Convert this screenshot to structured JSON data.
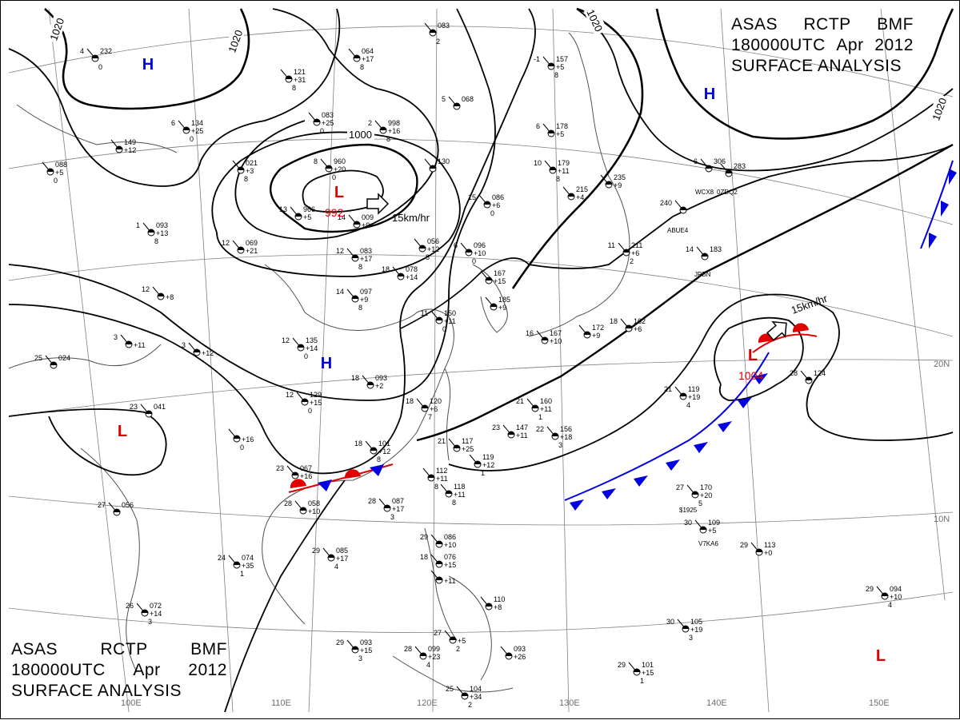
{
  "header": {
    "line1": [
      "ASAS",
      "RCTP",
      "BMF"
    ],
    "line2": [
      "180000UTC",
      "Apr",
      "2012"
    ],
    "line3": "SURFACE ANALYSIS"
  },
  "grid_labels": {
    "longitudes": [
      "100E",
      "110E",
      "120E",
      "130E",
      "140E",
      "150E"
    ],
    "latitudes": [
      "20N",
      "10N"
    ]
  },
  "isobar_labels": [
    "1020",
    "1020",
    "1020",
    "1020",
    "1000"
  ],
  "systems": [
    {
      "type": "L",
      "pressure": "992",
      "motion": "15km/hr"
    },
    {
      "type": "L",
      "pressure": "1004",
      "motion": "15km/hr"
    },
    {
      "type": "L",
      "pressure": ""
    },
    {
      "type": "L",
      "pressure": ""
    },
    {
      "type": "H",
      "pressure": ""
    },
    {
      "type": "H",
      "pressure": ""
    },
    {
      "type": "H",
      "pressure": ""
    }
  ],
  "colors": {
    "low": "#e00000",
    "high": "#0000e0",
    "isobar": "#000000",
    "grid": "#808080",
    "coast": "#505050",
    "cold_front": "#0000e0",
    "warm_front": "#e00000"
  },
  "stations": [
    {
      "t": "4",
      "p": "232",
      "d": "",
      "v": "0"
    },
    {
      "t": "6",
      "p": "134",
      "d": "+25",
      "v": "0"
    },
    {
      "t": "",
      "p": "149",
      "d": "+12",
      "v": ""
    },
    {
      "t": "",
      "p": "088",
      "d": "+5",
      "v": "0"
    },
    {
      "t": "",
      "p": "064",
      "d": "+17",
      "v": "8"
    },
    {
      "t": "",
      "p": "121",
      "d": "+31",
      "v": "8"
    },
    {
      "t": "",
      "p": "083",
      "d": "",
      "v": "2"
    },
    {
      "t": "",
      "p": "083",
      "d": "+25",
      "v": "0"
    },
    {
      "t": "",
      "p": "021",
      "d": "+3",
      "v": "8"
    },
    {
      "t": "2",
      "p": "998",
      "d": "+16",
      "v": "8"
    },
    {
      "t": "8",
      "p": "960",
      "d": "+20",
      "v": "0"
    },
    {
      "t": "13",
      "p": "966",
      "d": "+5",
      "v": ""
    },
    {
      "t": "14",
      "p": "009",
      "d": "+9",
      "v": ""
    },
    {
      "t": "1",
      "p": "093",
      "d": "+13",
      "v": "8"
    },
    {
      "t": "12",
      "p": "069",
      "d": "+21",
      "v": ""
    },
    {
      "t": "12",
      "p": "083",
      "d": "+17",
      "v": "8"
    },
    {
      "t": "18",
      "p": "078",
      "d": "+14",
      "v": ""
    },
    {
      "t": "14",
      "p": "097",
      "d": "+9",
      "v": "8"
    },
    {
      "t": "",
      "p": "056",
      "d": "+12",
      "v": "8"
    },
    {
      "t": "15",
      "p": "086",
      "d": "+6",
      "v": "0"
    },
    {
      "t": "6",
      "p": "096",
      "d": "+10",
      "v": "0"
    },
    {
      "t": "",
      "p": "130",
      "d": "",
      "v": ""
    },
    {
      "t": "5",
      "p": "068",
      "d": "",
      "v": ""
    },
    {
      "t": "-1",
      "p": "157",
      "d": "+5",
      "v": "8"
    },
    {
      "t": "6",
      "p": "178",
      "d": "+5",
      "v": ""
    },
    {
      "t": "10",
      "p": "179",
      "d": "+11",
      "v": "8"
    },
    {
      "t": "",
      "p": "215",
      "d": "+4",
      "v": ""
    },
    {
      "t": "",
      "p": "235",
      "d": "+9",
      "v": ""
    },
    {
      "t": "6",
      "p": "306",
      "d": "",
      "v": ""
    },
    {
      "t": "",
      "p": "283",
      "d": "",
      "v": ""
    },
    {
      "t": "240",
      "p": "",
      "d": "",
      "v": ""
    },
    {
      "t": "11",
      "p": "211",
      "d": "+6",
      "v": "2"
    },
    {
      "t": "14",
      "p": "183",
      "d": "",
      "v": ""
    },
    {
      "t": "",
      "p": "167",
      "d": "+15",
      "v": ""
    },
    {
      "t": "",
      "p": "185",
      "d": "+9",
      "v": ""
    },
    {
      "t": "",
      "p": "172",
      "d": "+9",
      "v": ""
    },
    {
      "t": "18",
      "p": "162",
      "d": "+6",
      "v": ""
    },
    {
      "t": "16",
      "p": "167",
      "d": "+10",
      "v": ""
    },
    {
      "t": "11",
      "p": "150",
      "d": "+11",
      "v": "0"
    },
    {
      "t": "12",
      "p": "",
      "d": "+8",
      "v": ""
    },
    {
      "t": "3",
      "p": "",
      "d": "+12",
      "v": ""
    },
    {
      "t": "3",
      "p": "",
      "d": "+11",
      "v": ""
    },
    {
      "t": "25",
      "p": "024",
      "d": "",
      "v": ""
    },
    {
      "t": "12",
      "p": "135",
      "d": "+14",
      "v": "0"
    },
    {
      "t": "18",
      "p": "093",
      "d": "+2",
      "v": ""
    },
    {
      "t": "12",
      "p": "129",
      "d": "+15",
      "v": "0"
    },
    {
      "t": "18",
      "p": "120",
      "d": "+6",
      "v": "7"
    },
    {
      "t": "23",
      "p": "041",
      "d": "",
      "v": ""
    },
    {
      "t": "",
      "p": "",
      "d": "+16",
      "v": "0"
    },
    {
      "t": "18",
      "p": "101",
      "d": "+12",
      "v": "8"
    },
    {
      "t": "21",
      "p": "160",
      "d": "+11",
      "v": "1"
    },
    {
      "t": "23",
      "p": "147",
      "d": "+11",
      "v": ""
    },
    {
      "t": "22",
      "p": "156",
      "d": "+18",
      "v": "3"
    },
    {
      "t": "21",
      "p": "117",
      "d": "+25",
      "v": ""
    },
    {
      "t": "",
      "p": "119",
      "d": "+12",
      "v": "1"
    },
    {
      "t": "23",
      "p": "067",
      "d": "+16",
      "v": ""
    },
    {
      "t": "28",
      "p": "058",
      "d": "+10",
      "v": ""
    },
    {
      "t": "",
      "p": "112",
      "d": "+11",
      "v": "8"
    },
    {
      "t": "",
      "p": "118",
      "d": "+11",
      "v": "8"
    },
    {
      "t": "28",
      "p": "087",
      "d": "+17",
      "v": "3"
    },
    {
      "t": "21",
      "p": "119",
      "d": "+19",
      "v": "4"
    },
    {
      "t": "28",
      "p": "124",
      "d": "",
      "v": ""
    },
    {
      "t": "27",
      "p": "170",
      "d": "+20",
      "v": "5"
    },
    {
      "t": "30",
      "p": "109",
      "d": "+5",
      "v": ""
    },
    {
      "t": "29",
      "p": "113",
      "d": "+0",
      "v": ""
    },
    {
      "t": "27",
      "p": "056",
      "d": "",
      "v": ""
    },
    {
      "t": "24",
      "p": "074",
      "d": "+35",
      "v": "1"
    },
    {
      "t": "29",
      "p": "085",
      "d": "+17",
      "v": "4"
    },
    {
      "t": "29",
      "p": "086",
      "d": "+10",
      "v": ""
    },
    {
      "t": "18",
      "p": "076",
      "d": "+15",
      "v": ""
    },
    {
      "t": "",
      "p": "",
      "d": "+11",
      "v": ""
    },
    {
      "t": "",
      "p": "110",
      "d": "+8",
      "v": ""
    },
    {
      "t": "26",
      "p": "072",
      "d": "+14",
      "v": "3"
    },
    {
      "t": "29",
      "p": "093",
      "d": "+15",
      "v": "3"
    },
    {
      "t": "28",
      "p": "099",
      "d": "+23",
      "v": "4"
    },
    {
      "t": "27",
      "p": "",
      "d": "+5",
      "v": "2"
    },
    {
      "t": "",
      "p": "093",
      "d": "+26",
      "v": ""
    },
    {
      "t": "25",
      "p": "104",
      "d": "+34",
      "v": "2"
    },
    {
      "t": "30",
      "p": "105",
      "d": "+19",
      "v": "3"
    },
    {
      "t": "29",
      "p": "101",
      "d": "+15",
      "v": "1"
    },
    {
      "t": "29",
      "p": "094",
      "d": "+10",
      "v": "4"
    }
  ],
  "ship_ids": [
    "WCX8",
    "0ZDQ2",
    "ABUE4",
    "JPBN",
    "$1925",
    "V7KA6"
  ]
}
